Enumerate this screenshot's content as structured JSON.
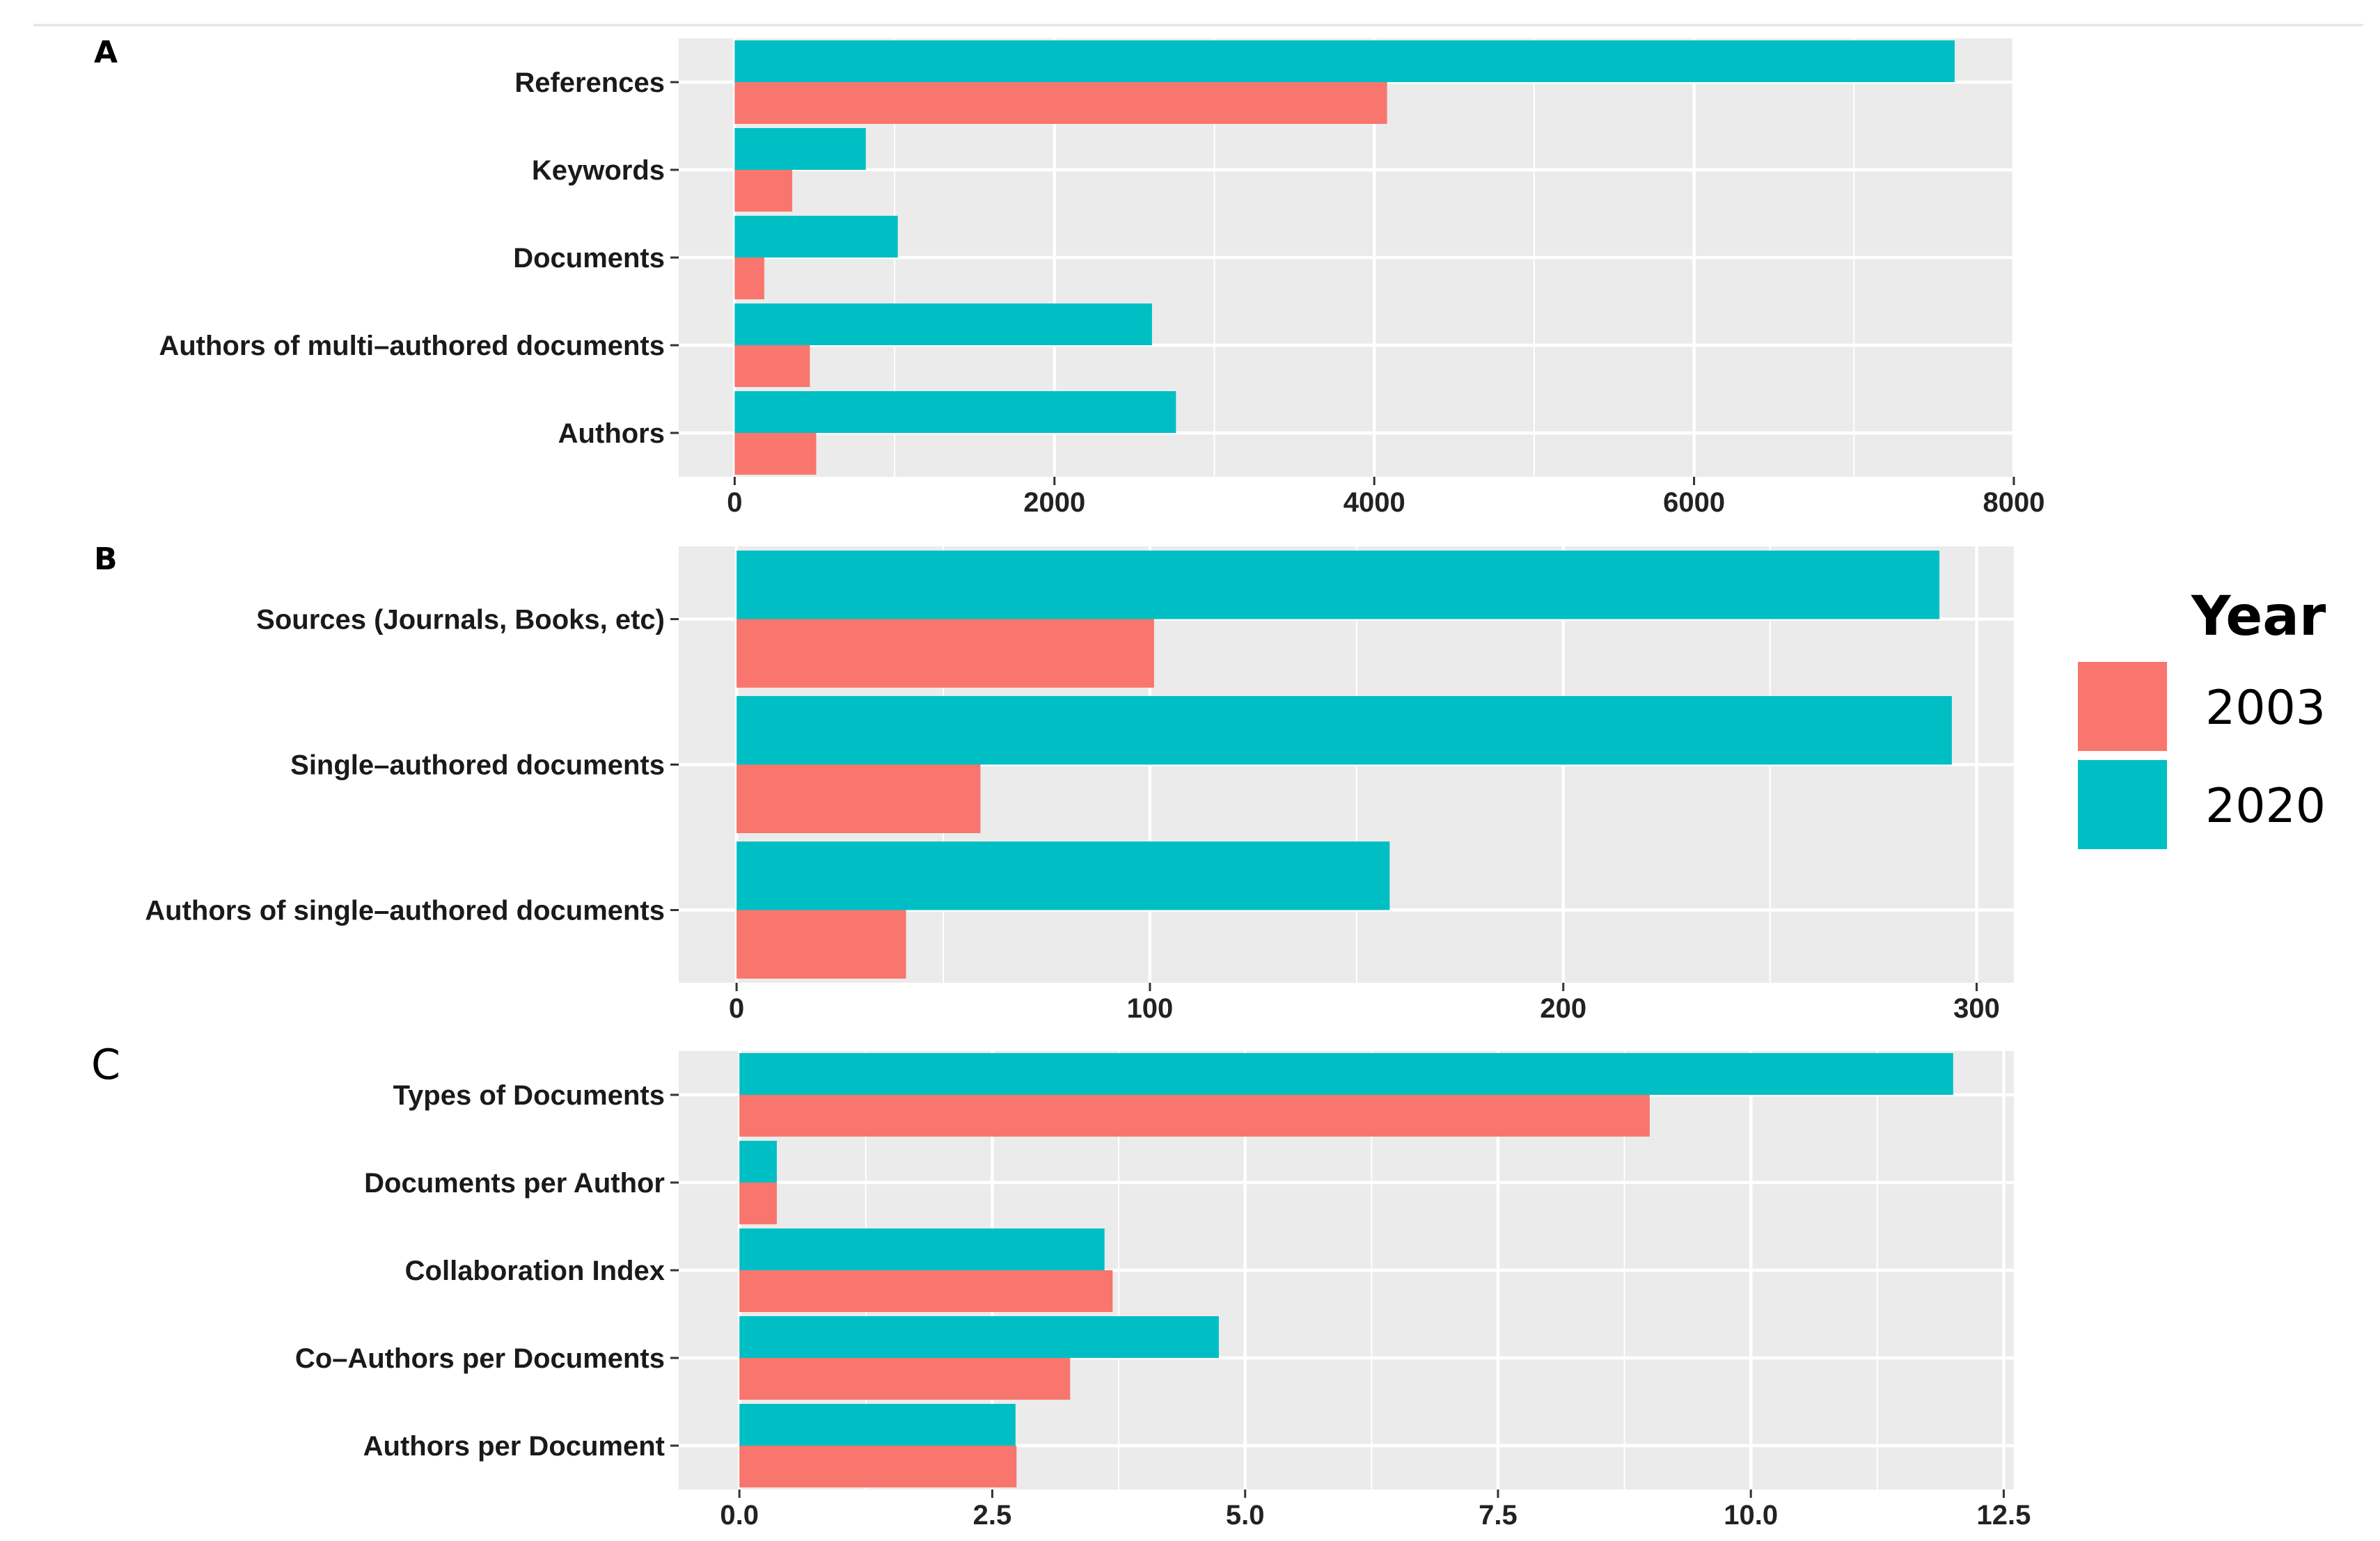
{
  "chart_data": [
    {
      "type": "bar",
      "orientation": "horizontal",
      "panel_label": "A",
      "categories": [
        "References",
        "Keywords",
        "Documents",
        "Authors of multi–authored documents",
        "Authors"
      ],
      "series": [
        {
          "name": "2003",
          "values": [
            4080,
            360,
            185,
            470,
            510
          ]
        },
        {
          "name": "2020",
          "values": [
            7630,
            820,
            1020,
            2610,
            2760
          ]
        }
      ],
      "xticks": [
        "0",
        "2000",
        "4000",
        "6000",
        "8000"
      ],
      "xlim": [
        -350,
        8000
      ],
      "xlabel": "",
      "ylabel": ""
    },
    {
      "type": "bar",
      "orientation": "horizontal",
      "panel_label": "B",
      "categories": [
        "Sources (Journals, Books, etc)",
        "Single–authored documents",
        "Authors of single–authored documents"
      ],
      "series": [
        {
          "name": "2003",
          "values": [
            101,
            59,
            41
          ]
        },
        {
          "name": "2020",
          "values": [
            291,
            294,
            158
          ]
        }
      ],
      "xticks": [
        "0",
        "100",
        "200",
        "300"
      ],
      "xlim": [
        -14,
        309
      ],
      "xlabel": "",
      "ylabel": ""
    },
    {
      "type": "bar",
      "orientation": "horizontal",
      "panel_label": "C",
      "categories": [
        "Types of Documents",
        "Documents per Author",
        "Collaboration Index",
        "Co–Authors per Documents",
        "Authors per Document"
      ],
      "series": [
        {
          "name": "2003",
          "values": [
            9,
            0.37,
            3.69,
            3.27,
            2.74
          ]
        },
        {
          "name": "2020",
          "values": [
            12,
            0.37,
            3.61,
            4.74,
            2.73
          ]
        }
      ],
      "xticks": [
        "0.0",
        "2.5",
        "5.0",
        "7.5",
        "10.0",
        "12.5"
      ],
      "xlim": [
        -0.6,
        12.6
      ],
      "xlabel": "",
      "ylabel": ""
    }
  ],
  "legend": {
    "title": "Year",
    "items": [
      {
        "label": "2003",
        "color": "#F8766D"
      },
      {
        "label": "2020",
        "color": "#00BFC4"
      }
    ]
  },
  "colors": {
    "2003": "#F8766D",
    "2020": "#00BFC4",
    "panel_bg": "#EBEBEB",
    "grid": "#FFFFFF"
  }
}
